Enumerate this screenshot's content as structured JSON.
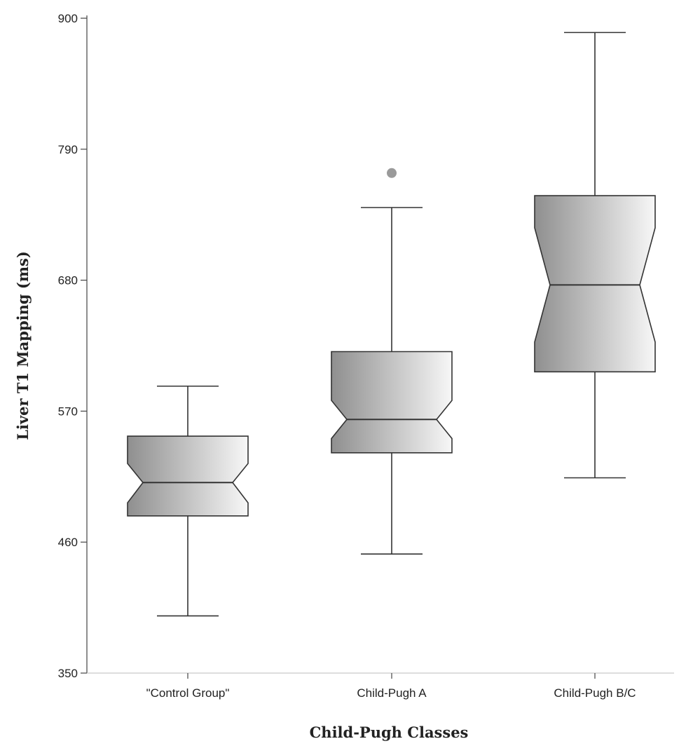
{
  "chart_data": {
    "type": "boxplot",
    "notched": true,
    "title": "",
    "xlabel": "Child-Pugh Classes",
    "ylabel": "Liver T1 Mapping (ms)",
    "ylim": [
      350,
      900
    ],
    "yticks": [
      350,
      460,
      570,
      680,
      790,
      900
    ],
    "categories": [
      "\"Control Group\"",
      "Child-Pugh A",
      "Child-Pugh B/C"
    ],
    "boxes": [
      {
        "whisker_low": 398,
        "q1": 482,
        "median": 510,
        "q3": 549,
        "whisker_high": 591,
        "notch_low": 493,
        "notch_high": 526
      },
      {
        "whisker_low": 450,
        "q1": 535,
        "median": 563,
        "q3": 620,
        "whisker_high": 741,
        "notch_low": 547,
        "notch_high": 579
      },
      {
        "whisker_low": 514,
        "q1": 603,
        "median": 676,
        "q3": 751,
        "whisker_high": 888,
        "notch_low": 628,
        "notch_high": 724
      }
    ],
    "outliers": [
      {
        "category": 1,
        "value": 770
      }
    ],
    "colors": {
      "box_dark": "#8f8f8f",
      "box_light": "#f7f7f7",
      "outlier": "#9a9a9a",
      "line": "#333333"
    }
  }
}
